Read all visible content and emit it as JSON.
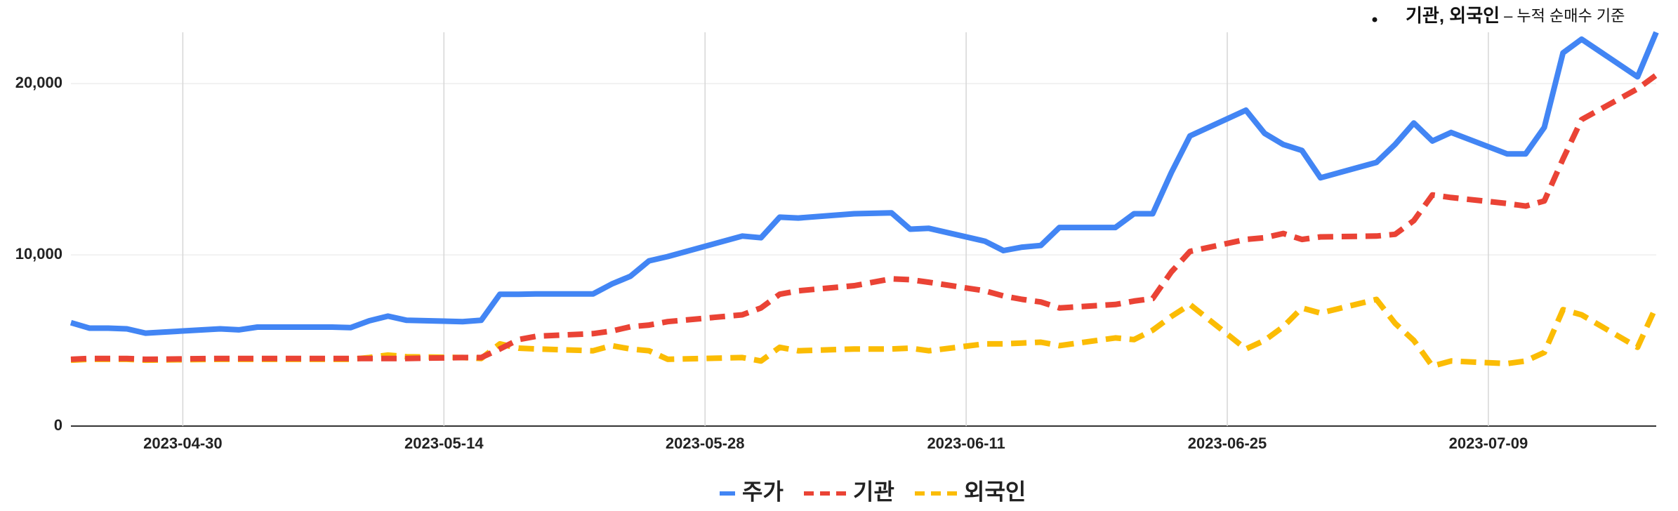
{
  "chart_data": {
    "type": "line",
    "note": {
      "bold": "기관, 외국인",
      "rest": "– 누적 순매수 기준"
    },
    "x": [
      "2023-04-24",
      "2023-04-25",
      "2023-04-26",
      "2023-04-27",
      "2023-04-28",
      "2023-05-02",
      "2023-05-03",
      "2023-05-04",
      "2023-05-08",
      "2023-05-09",
      "2023-05-10",
      "2023-05-11",
      "2023-05-12",
      "2023-05-15",
      "2023-05-16",
      "2023-05-17",
      "2023-05-18",
      "2023-05-19",
      "2023-05-22",
      "2023-05-23",
      "2023-05-24",
      "2023-05-25",
      "2023-05-26",
      "2023-05-30",
      "2023-05-31",
      "2023-06-01",
      "2023-06-02",
      "2023-06-05",
      "2023-06-07",
      "2023-06-08",
      "2023-06-09",
      "2023-06-12",
      "2023-06-13",
      "2023-06-14",
      "2023-06-15",
      "2023-06-16",
      "2023-06-19",
      "2023-06-20",
      "2023-06-21",
      "2023-06-22",
      "2023-06-23",
      "2023-06-26",
      "2023-06-27",
      "2023-06-28",
      "2023-06-29",
      "2023-06-30",
      "2023-07-03",
      "2023-07-04",
      "2023-07-05",
      "2023-07-06",
      "2023-07-07",
      "2023-07-10",
      "2023-07-11",
      "2023-07-12",
      "2023-07-13",
      "2023-07-14",
      "2023-07-17",
      "2023-07-18"
    ],
    "series": [
      {
        "name": "주가",
        "color": "#4285f4",
        "style": "solid",
        "values": [
          6040,
          5720,
          5720,
          5680,
          5430,
          5680,
          5620,
          5780,
          5780,
          5750,
          6150,
          6420,
          6180,
          6100,
          6180,
          7700,
          7700,
          7720,
          7720,
          8300,
          8750,
          9650,
          9900,
          11100,
          11000,
          12200,
          12150,
          12400,
          12450,
          11500,
          11550,
          10800,
          10250,
          10450,
          10550,
          11600,
          11600,
          12400,
          12400,
          14800,
          16950,
          18450,
          17100,
          16450,
          16100,
          14500,
          15400,
          16450,
          17700,
          16650,
          17150,
          15900,
          15900,
          17450,
          21800,
          22600,
          20400,
          23000
        ]
      },
      {
        "name": "기관",
        "color": "#ea4335",
        "style": "dashed",
        "values": [
          3900,
          3950,
          3950,
          3950,
          3900,
          3950,
          3950,
          3950,
          3950,
          3950,
          3950,
          3950,
          3950,
          4000,
          4000,
          4500,
          5050,
          5250,
          5400,
          5550,
          5800,
          5900,
          6100,
          6500,
          6900,
          7700,
          7900,
          8200,
          8600,
          8550,
          8400,
          7900,
          7600,
          7400,
          7250,
          6900,
          7100,
          7300,
          7450,
          9000,
          10200,
          10900,
          11000,
          11250,
          10900,
          11050,
          11100,
          11200,
          12000,
          13500,
          13350,
          13000,
          12850,
          13150,
          15600,
          17900,
          19700,
          20500
        ]
      },
      {
        "name": "외국인",
        "color": "#fbbc04",
        "style": "dashed",
        "values": [
          3850,
          3900,
          3900,
          3900,
          3850,
          3900,
          3900,
          3900,
          3900,
          3900,
          4000,
          4150,
          4050,
          4000,
          3950,
          4800,
          4550,
          4500,
          4400,
          4700,
          4500,
          4400,
          3900,
          4000,
          3800,
          4600,
          4400,
          4500,
          4500,
          4550,
          4400,
          4800,
          4800,
          4850,
          4900,
          4700,
          5150,
          5050,
          5600,
          6400,
          7100,
          4500,
          5000,
          5800,
          6900,
          6600,
          7400,
          6000,
          5000,
          3500,
          3800,
          3650,
          3800,
          4300,
          6800,
          6500,
          4600,
          7000
        ]
      }
    ],
    "xlim": [
      "2023-04-24",
      "2023-07-18"
    ],
    "xticks": [
      "2023-04-30",
      "2023-05-14",
      "2023-05-28",
      "2023-06-11",
      "2023-06-25",
      "2023-07-09"
    ],
    "ylim": [
      0,
      23000
    ],
    "yticks": [
      0,
      {
        "value": 10000,
        "label": "10,000"
      },
      {
        "value": 20000,
        "label": "20,000"
      }
    ],
    "grid": true,
    "legend": "bottom"
  }
}
